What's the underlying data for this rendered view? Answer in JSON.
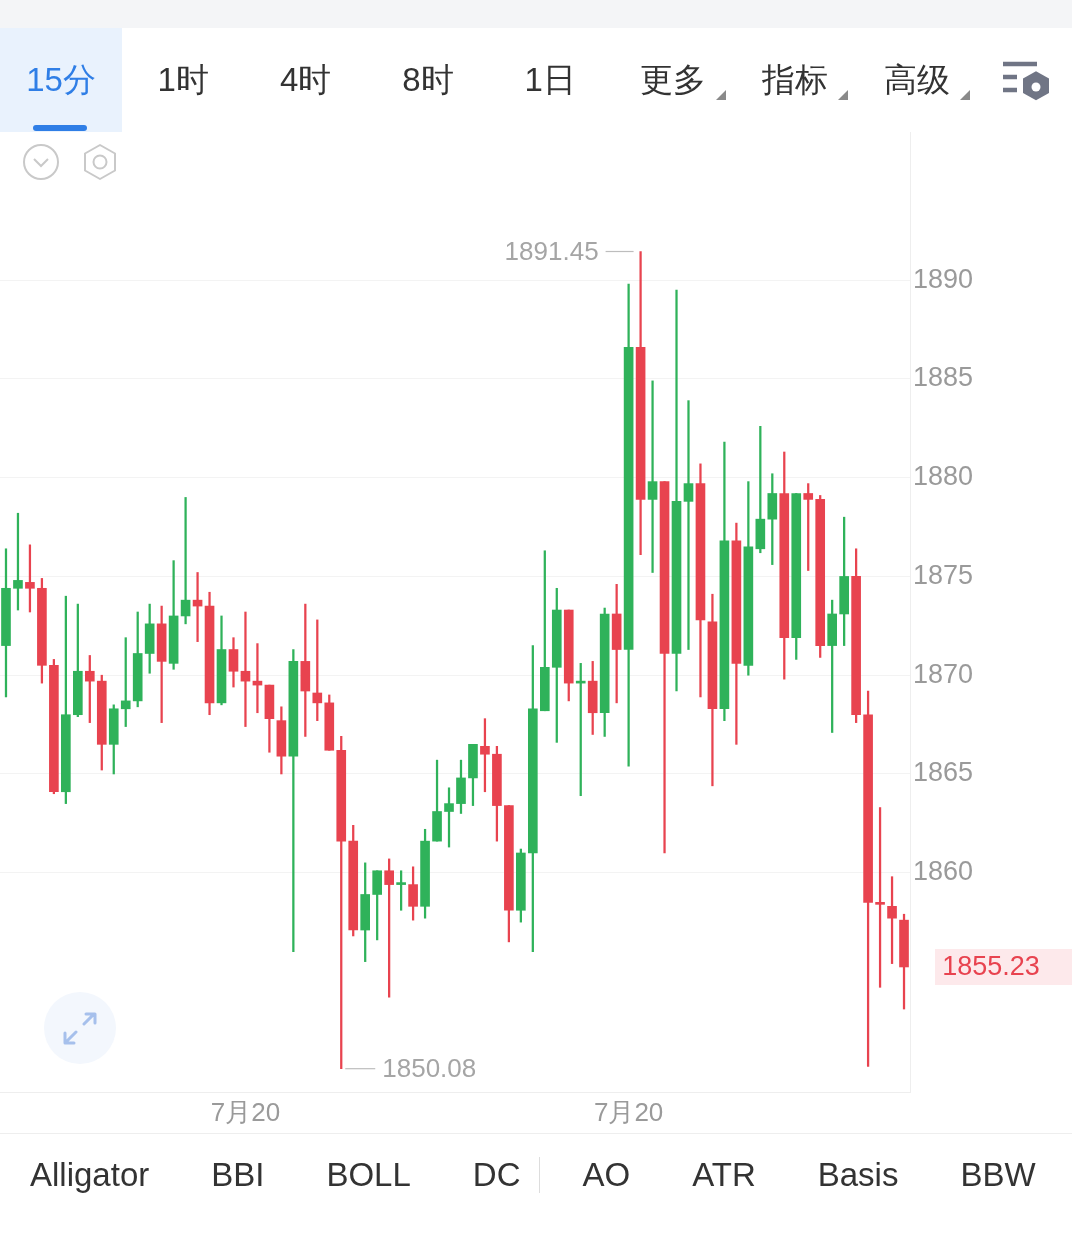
{
  "chart_data": [
    {
      "type": "other",
      "annotations": [
        "15分",
        "1时",
        "4时",
        "8时",
        "1日",
        "更多",
        "指标",
        "高级"
      ]
    },
    {
      "type": "candlestick",
      "categories": [
        null,
        null,
        null,
        null,
        null,
        null,
        null,
        null,
        null,
        null,
        null,
        null,
        null,
        null,
        null,
        null,
        null,
        null,
        null,
        null,
        "7月20",
        null,
        null,
        null,
        null,
        null,
        null,
        null,
        null,
        null,
        null,
        null,
        null,
        null,
        null,
        null,
        null,
        null,
        null,
        null,
        null,
        null,
        null,
        null,
        null,
        null,
        null,
        null,
        null,
        null,
        null,
        null,
        "7月20",
        null,
        null,
        null,
        null,
        null,
        null,
        null,
        null,
        null,
        null,
        null,
        null,
        null,
        null,
        null,
        null,
        null,
        null,
        null,
        null,
        null,
        null,
        null
      ],
      "ohlc": [
        [
          1871.5,
          1876.4,
          1868.9,
          1874.4
        ],
        [
          1874.4,
          1878.2,
          1873.3,
          1874.8
        ],
        [
          1874.7,
          1876.6,
          1873.2,
          1874.4
        ],
        [
          1874.4,
          1874.9,
          1869.6,
          1870.5
        ],
        [
          1870.5,
          1870.8,
          1864.0,
          1864.1
        ],
        [
          1864.1,
          1874.0,
          1863.5,
          1868.0
        ],
        [
          1868.0,
          1873.6,
          1867.9,
          1870.2
        ],
        [
          1870.2,
          1871.0,
          1867.6,
          1869.7
        ],
        [
          1869.7,
          1870.0,
          1865.2,
          1866.5
        ],
        [
          1866.5,
          1868.5,
          1865.0,
          1868.3
        ],
        [
          1868.3,
          1871.9,
          1867.4,
          1868.7
        ],
        [
          1868.7,
          1873.2,
          1868.4,
          1871.1
        ],
        [
          1871.1,
          1873.6,
          1870.1,
          1872.6
        ],
        [
          1872.6,
          1873.5,
          1867.6,
          1870.7
        ],
        [
          1870.6,
          1875.8,
          1870.3,
          1873.0
        ],
        [
          1873.0,
          1879.0,
          1872.6,
          1873.8
        ],
        [
          1873.8,
          1875.2,
          1871.7,
          1873.5
        ],
        [
          1873.5,
          1874.2,
          1868.0,
          1868.6
        ],
        [
          1868.6,
          1873.0,
          1868.5,
          1871.3
        ],
        [
          1871.3,
          1871.9,
          1869.4,
          1870.2
        ],
        [
          1870.2,
          1873.2,
          1867.4,
          1869.7
        ],
        [
          1869.7,
          1871.6,
          1868.1,
          1869.5
        ],
        [
          1869.5,
          1869.5,
          1866.1,
          1867.8
        ],
        [
          1867.7,
          1868.4,
          1865.0,
          1865.9
        ],
        [
          1865.9,
          1871.3,
          1856.0,
          1870.7
        ],
        [
          1870.7,
          1873.6,
          1866.9,
          1869.2
        ],
        [
          1869.1,
          1872.8,
          1867.7,
          1868.6
        ],
        [
          1868.6,
          1869.0,
          1866.2,
          1866.2
        ],
        [
          1866.2,
          1866.9,
          1850.08,
          1861.6
        ],
        [
          1861.6,
          1862.4,
          1856.8,
          1857.1
        ],
        [
          1857.1,
          1860.5,
          1855.5,
          1858.9
        ],
        [
          1858.9,
          1860.1,
          1856.6,
          1860.1
        ],
        [
          1860.1,
          1860.7,
          1853.7,
          1859.4
        ],
        [
          1859.4,
          1860.1,
          1858.1,
          1859.5
        ],
        [
          1859.4,
          1860.3,
          1857.6,
          1858.3
        ],
        [
          1858.3,
          1862.2,
          1857.7,
          1861.6
        ],
        [
          1861.6,
          1865.7,
          1861.6,
          1863.1
        ],
        [
          1863.1,
          1864.3,
          1861.3,
          1863.5
        ],
        [
          1863.5,
          1865.7,
          1863.0,
          1864.8
        ],
        [
          1864.8,
          1866.5,
          1863.4,
          1866.5
        ],
        [
          1866.4,
          1867.8,
          1864.1,
          1866.0
        ],
        [
          1866.0,
          1866.4,
          1861.6,
          1863.4
        ],
        [
          1863.4,
          1863.4,
          1856.5,
          1858.1
        ],
        [
          1858.1,
          1861.2,
          1857.5,
          1861.0
        ],
        [
          1861.0,
          1871.5,
          1856.0,
          1868.3
        ],
        [
          1868.2,
          1876.3,
          1868.2,
          1870.4
        ],
        [
          1870.4,
          1874.4,
          1866.6,
          1873.3
        ],
        [
          1873.3,
          1873.3,
          1868.7,
          1869.6
        ],
        [
          1869.6,
          1870.6,
          1863.9,
          1869.7
        ],
        [
          1869.7,
          1870.7,
          1867.0,
          1868.1
        ],
        [
          1868.1,
          1873.4,
          1866.9,
          1873.1
        ],
        [
          1873.1,
          1874.6,
          1868.6,
          1871.3
        ],
        [
          1871.3,
          1889.8,
          1865.4,
          1886.6
        ],
        [
          1886.6,
          1891.45,
          1876.1,
          1878.9
        ],
        [
          1878.9,
          1884.9,
          1875.2,
          1879.8
        ],
        [
          1879.8,
          1879.8,
          1861.0,
          1871.1
        ],
        [
          1871.1,
          1889.5,
          1869.2,
          1878.8
        ],
        [
          1878.8,
          1883.9,
          1871.3,
          1879.7
        ],
        [
          1879.7,
          1880.7,
          1868.9,
          1872.8
        ],
        [
          1872.7,
          1874.1,
          1864.4,
          1868.3
        ],
        [
          1868.3,
          1881.8,
          1867.7,
          1876.8
        ],
        [
          1876.8,
          1877.7,
          1866.5,
          1870.6
        ],
        [
          1870.5,
          1879.8,
          1870.0,
          1876.5
        ],
        [
          1876.4,
          1882.6,
          1876.2,
          1877.9
        ],
        [
          1877.9,
          1880.2,
          1875.6,
          1879.2
        ],
        [
          1879.2,
          1881.3,
          1869.8,
          1871.9
        ],
        [
          1871.9,
          1879.2,
          1870.8,
          1879.2
        ],
        [
          1879.2,
          1879.7,
          1875.3,
          1878.9
        ],
        [
          1878.9,
          1879.1,
          1870.9,
          1871.5
        ],
        [
          1871.5,
          1873.8,
          1867.1,
          1873.1
        ],
        [
          1873.1,
          1878.0,
          1871.5,
          1875.0
        ],
        [
          1875.0,
          1876.4,
          1867.6,
          1868.0
        ],
        [
          1868.0,
          1869.2,
          1850.2,
          1858.5
        ],
        [
          1858.5,
          1863.3,
          1854.2,
          1858.4
        ],
        [
          1858.3,
          1859.8,
          1855.4,
          1857.7
        ],
        [
          1857.6,
          1857.9,
          1853.1,
          1855.23
        ]
      ],
      "colors": [
        "#2fb25a",
        "#2fb25a",
        "#e8434f",
        "#e8434f",
        "#e8434f",
        "#2fb25a",
        "#2fb25a",
        "#e8434f",
        "#e8434f",
        "#2fb25a",
        "#2fb25a",
        "#2fb25a",
        "#2fb25a",
        "#e8434f",
        "#2fb25a",
        "#2fb25a",
        "#e8434f",
        "#e8434f",
        "#2fb25a",
        "#e8434f",
        "#e8434f",
        "#e8434f",
        "#e8434f",
        "#e8434f",
        "#2fb25a",
        "#e8434f",
        "#e8434f",
        "#e8434f",
        "#e8434f",
        "#e8434f",
        "#2fb25a",
        "#2fb25a",
        "#e8434f",
        "#2fb25a",
        "#e8434f",
        "#2fb25a",
        "#2fb25a",
        "#2fb25a",
        "#2fb25a",
        "#2fb25a",
        "#e8434f",
        "#e8434f",
        "#e8434f",
        "#2fb25a",
        "#2fb25a",
        "#2fb25a",
        "#2fb25a",
        "#e8434f",
        "#2fb25a",
        "#e8434f",
        "#2fb25a",
        "#e8434f",
        "#2fb25a",
        "#e8434f",
        "#2fb25a",
        "#e8434f",
        "#2fb25a",
        "#2fb25a",
        "#e8434f",
        "#e8434f",
        "#2fb25a",
        "#e8434f",
        "#2fb25a",
        "#2fb25a",
        "#2fb25a",
        "#e8434f",
        "#2fb25a",
        "#e8434f",
        "#e8434f",
        "#2fb25a",
        "#2fb25a",
        "#e8434f",
        "#e8434f",
        "#e8434f",
        "#e8434f",
        "#e8434f"
      ],
      "ylim": [
        1848.9,
        1897.5
      ],
      "yticks": [
        1860,
        1865,
        1870,
        1875,
        1880,
        1885,
        1890
      ],
      "grid": "y",
      "annotations": [
        "1891.45",
        "1850.08",
        "1855.23"
      ]
    },
    {
      "type": "other",
      "annotations": [
        "Alligator",
        "BBI",
        "BOLL",
        "DC",
        "AO",
        "ATR",
        "Basis",
        "BBW"
      ]
    }
  ]
}
